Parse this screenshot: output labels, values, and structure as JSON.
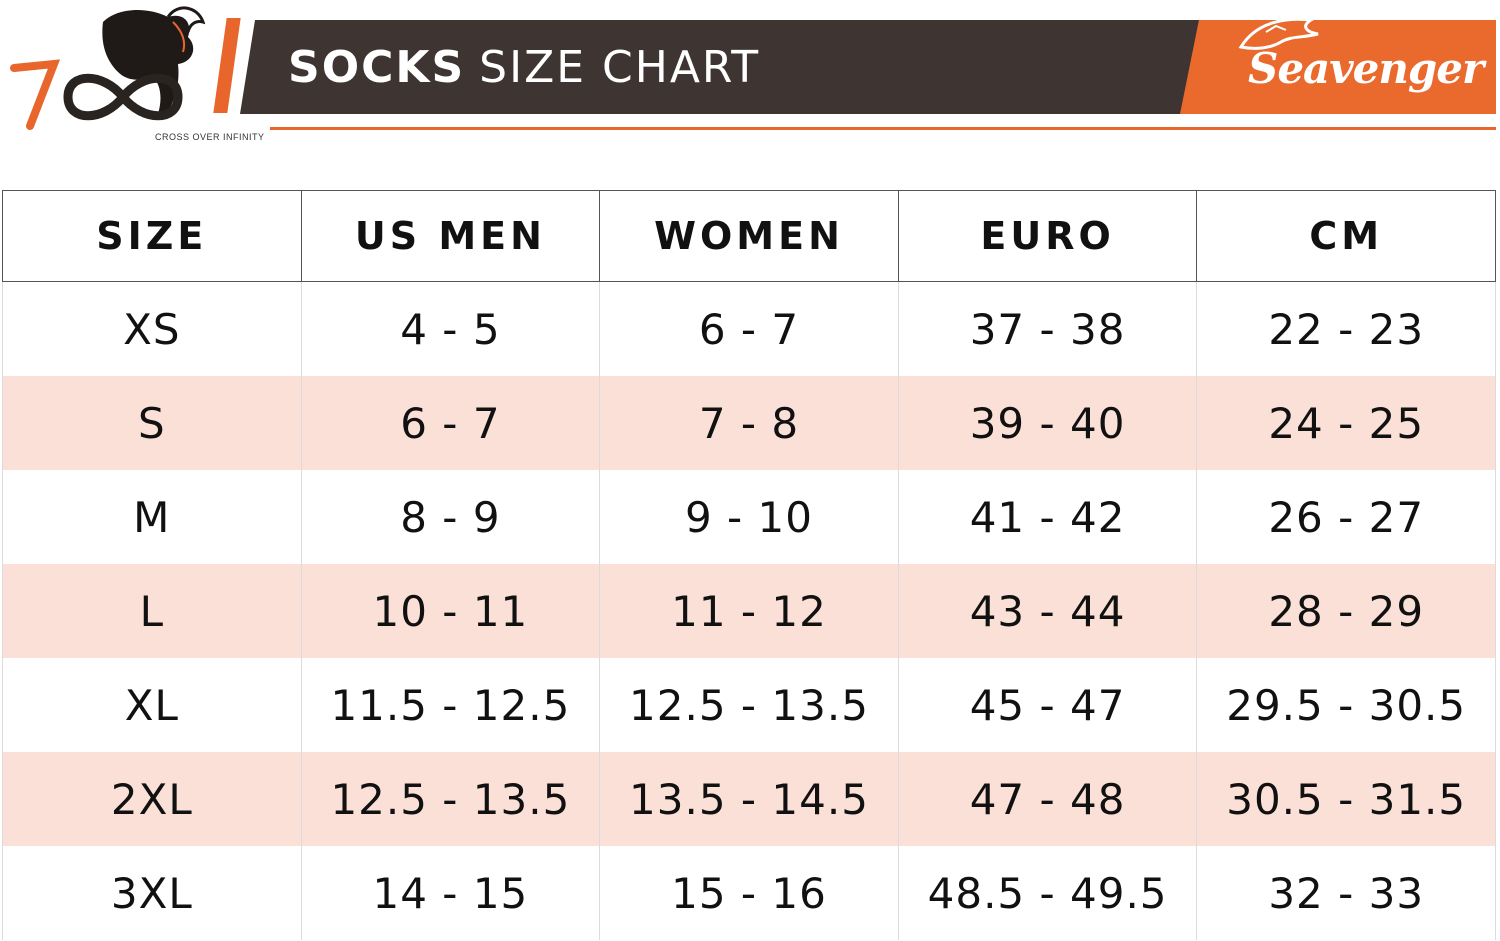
{
  "header": {
    "title_bold": "SOCKS",
    "title_light": "SIZE CHART",
    "left_logo": {
      "icon": "horse-infinity-logo",
      "mark": "7",
      "tagline": "CROSS OVER INFINITY"
    },
    "brand": {
      "icon": "dragon-logo",
      "name": "Seavenger"
    }
  },
  "colors": {
    "accent": "#e8662b",
    "title_bar": "#3e3431",
    "row_shade": "#fbe0d7"
  },
  "table": {
    "columns": [
      "SIZE",
      "US MEN",
      "WOMEN",
      "EURO",
      "CM"
    ],
    "rows": [
      [
        "XS",
        "4 - 5",
        "6 - 7",
        "37 - 38",
        "22 - 23"
      ],
      [
        "S",
        "6 - 7",
        "7 - 8",
        "39 - 40",
        "24 - 25"
      ],
      [
        "M",
        "8 - 9",
        "9 - 10",
        "41 - 42",
        "26 - 27"
      ],
      [
        "L",
        "10 - 11",
        "11 - 12",
        "43 - 44",
        "28 - 29"
      ],
      [
        "XL",
        "11.5 - 12.5",
        "12.5 - 13.5",
        "45 - 47",
        "29.5 - 30.5"
      ],
      [
        "2XL",
        "12.5 - 13.5",
        "13.5 - 14.5",
        "47 - 48",
        "30.5 - 31.5"
      ],
      [
        "3XL",
        "14 - 15",
        "15 - 16",
        "48.5 - 49.5",
        "32 - 33"
      ]
    ]
  }
}
